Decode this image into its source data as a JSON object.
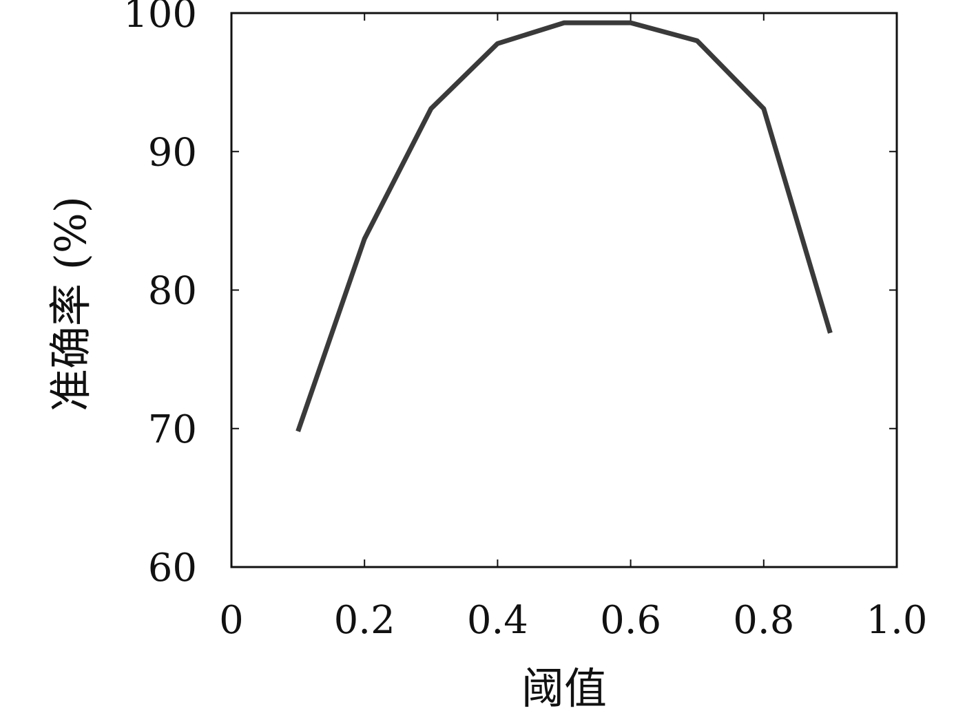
{
  "chart_data": {
    "type": "line",
    "title": "",
    "xlabel": "阈值",
    "ylabel": "准确率 (%)",
    "xlim": [
      0,
      1.0
    ],
    "ylim": [
      60,
      100
    ],
    "x_ticks": [
      "0",
      "0.2",
      "0.4",
      "0.6",
      "0.8",
      "1.0"
    ],
    "y_ticks": [
      "60",
      "70",
      "80",
      "90",
      "100"
    ],
    "grid": false,
    "legend": "none",
    "series": [
      {
        "color": "#3a3a3a",
        "x": [
          0.1,
          0.2,
          0.3,
          0.4,
          0.5,
          0.6,
          0.7,
          0.8,
          0.9
        ],
        "y": [
          69.8,
          83.7,
          93.1,
          97.8,
          99.3,
          99.3,
          98.0,
          93.1,
          76.9
        ]
      }
    ]
  }
}
